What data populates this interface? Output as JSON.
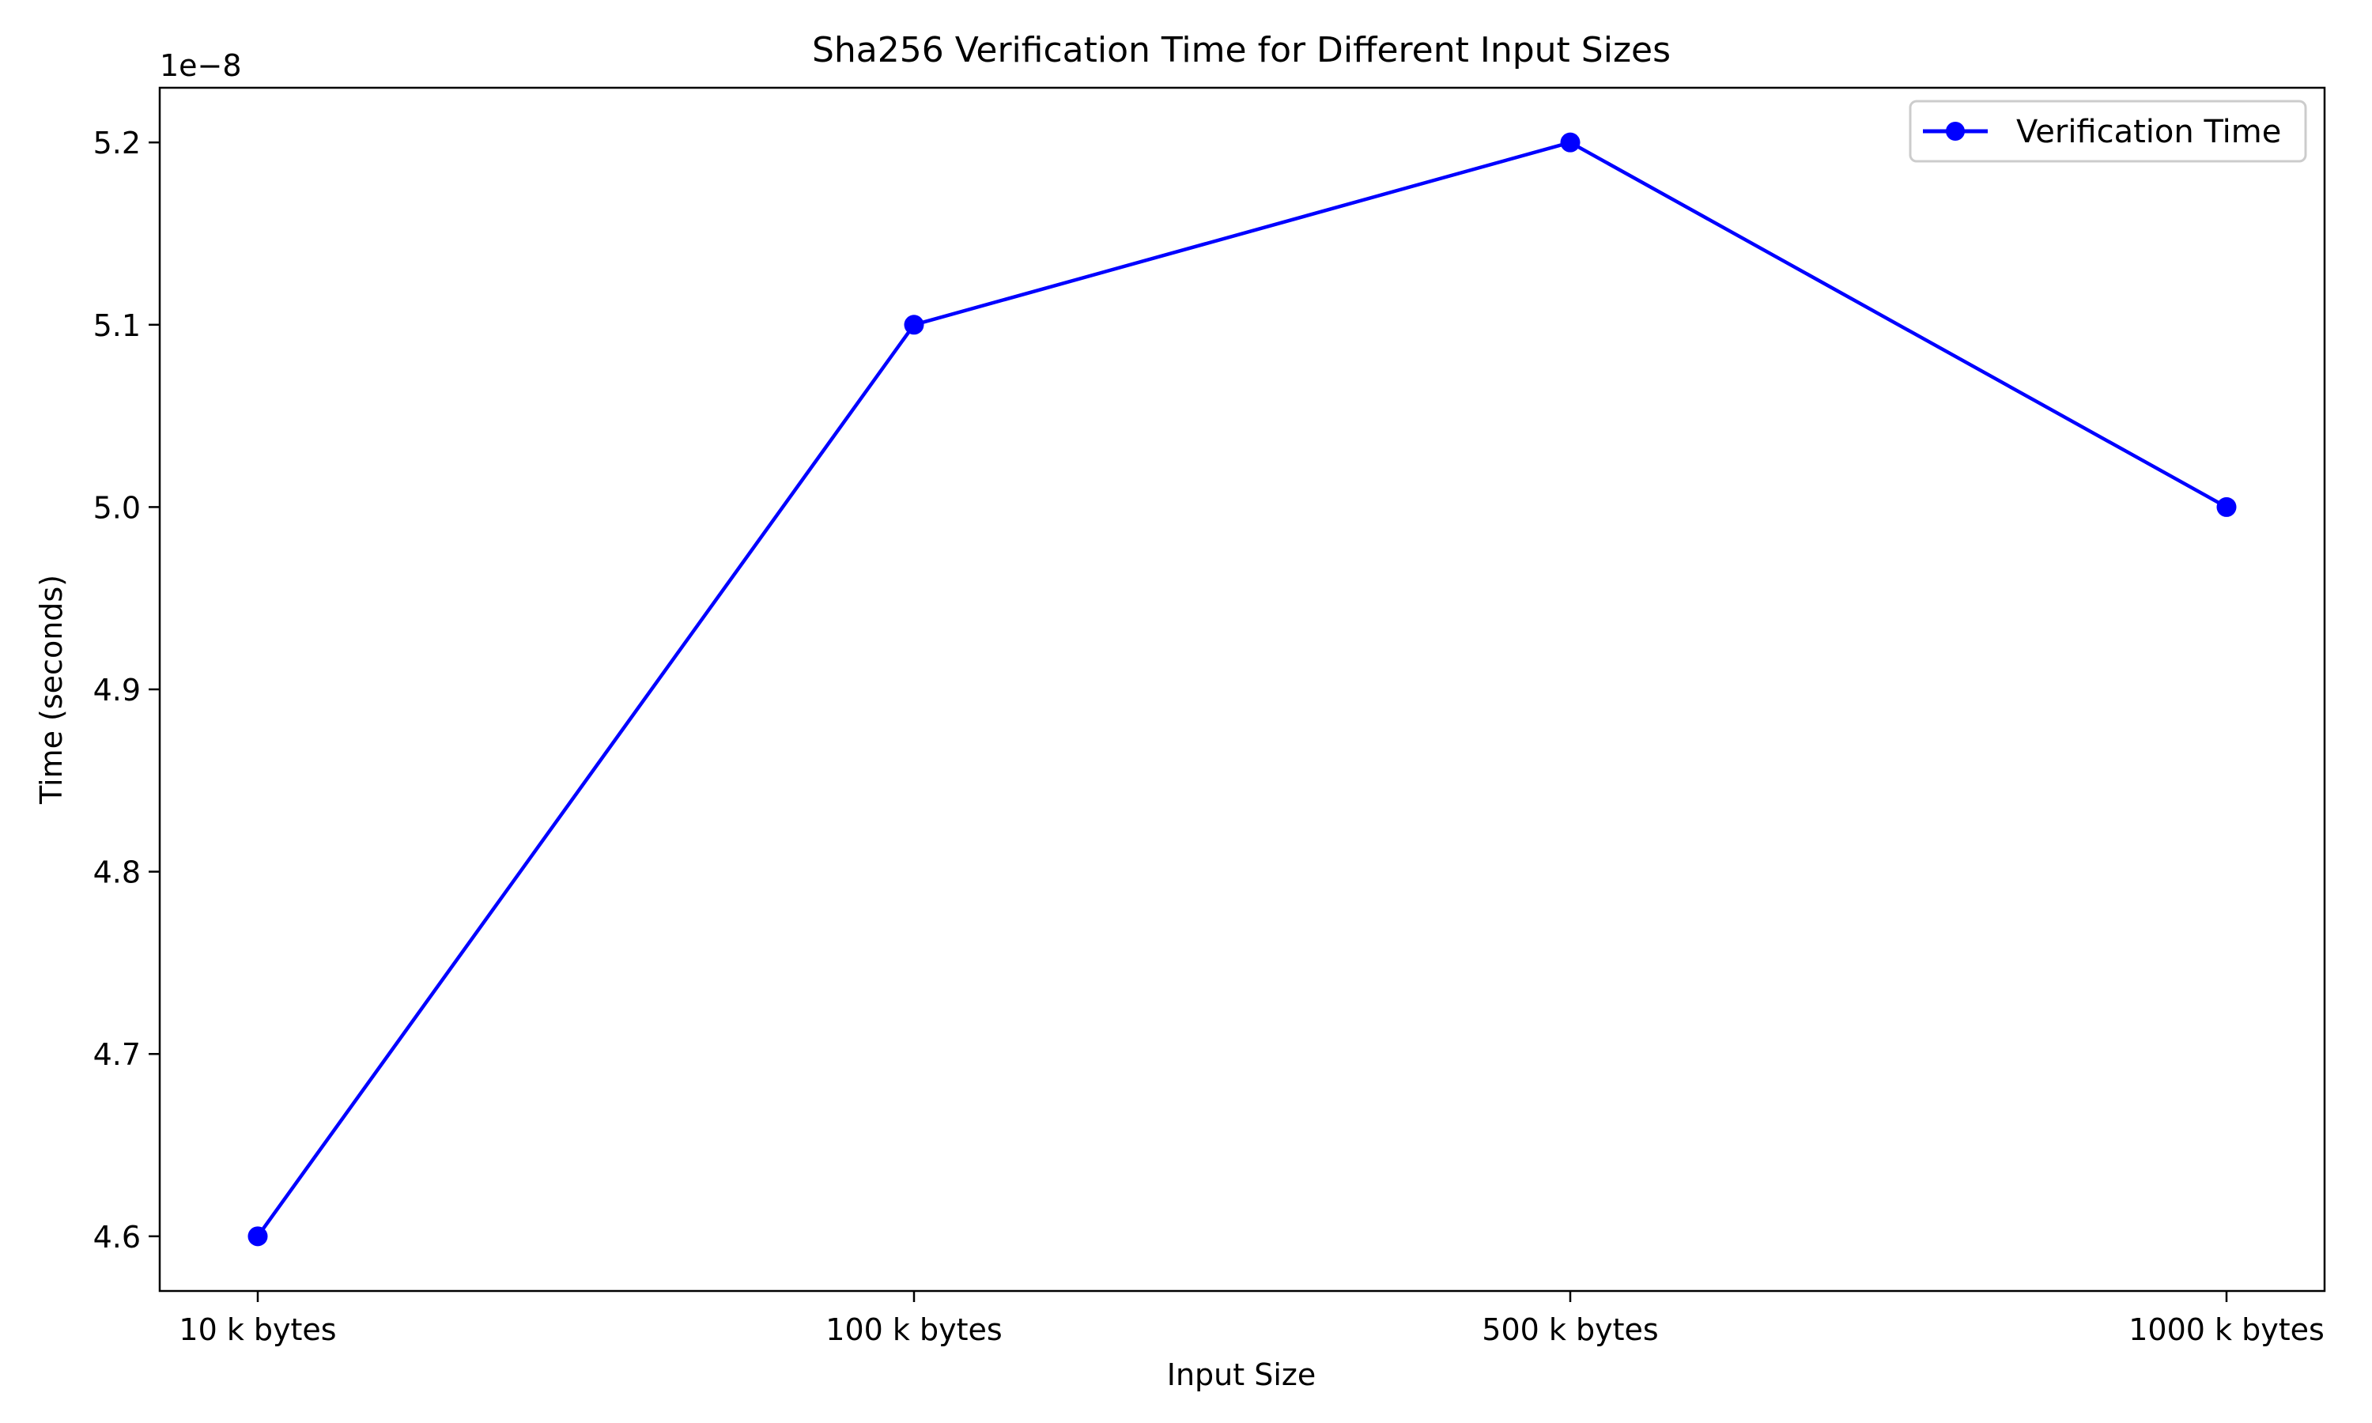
{
  "chart_data": {
    "type": "line",
    "title": "Sha256 Verification Time for Different Input Sizes",
    "xlabel": "Input Size",
    "ylabel": "Time (seconds)",
    "y_offset_label": "1e−8",
    "categories": [
      "10 k bytes",
      "100 k bytes",
      "500 k bytes",
      "1000 k bytes"
    ],
    "series": [
      {
        "name": "Verification Time",
        "values": [
          4.6e-08,
          5.1e-08,
          5.2e-08,
          5e-08
        ],
        "color": "#0000ff",
        "marker": "circle"
      }
    ],
    "y_ticks": [
      4.6e-08,
      4.7e-08,
      4.8e-08,
      4.9e-08,
      5e-08,
      5.1e-08,
      5.2e-08
    ],
    "y_tick_labels": [
      "4.6",
      "4.7",
      "4.8",
      "4.9",
      "5.0",
      "5.1",
      "5.2"
    ],
    "ylim": [
      4.57e-08,
      5.23e-08
    ],
    "grid": false,
    "legend_position": "top-right"
  }
}
